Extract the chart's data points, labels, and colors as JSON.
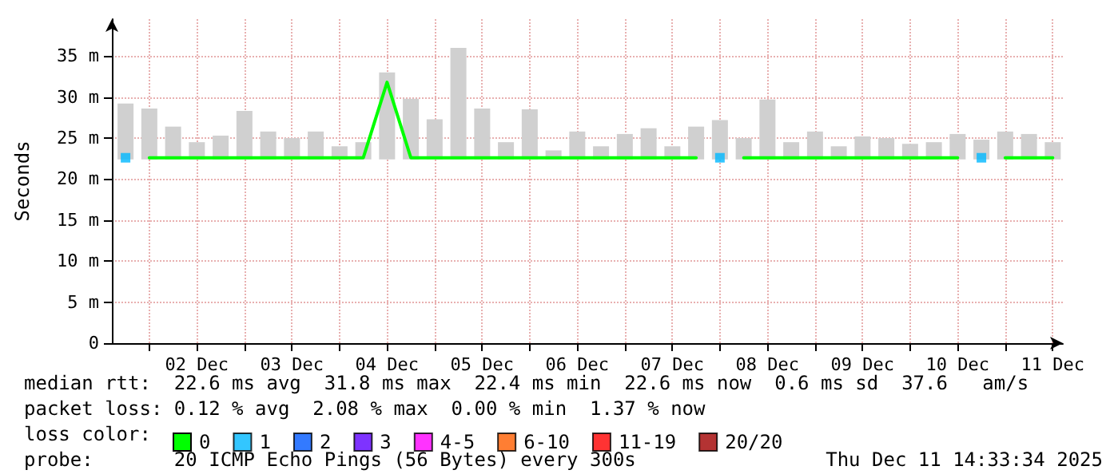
{
  "chart_data": {
    "type": "line",
    "ylabel": "Seconds",
    "legend_title": "loss color:",
    "legend": "bottom",
    "grid": true,
    "marker": "none",
    "x": [
      "2025-12-01T18:00",
      "2025-12-02T00:00",
      "2025-12-02T06:00",
      "2025-12-02T12:00",
      "2025-12-02T18:00",
      "2025-12-03T00:00",
      "2025-12-03T06:00",
      "2025-12-03T12:00",
      "2025-12-03T18:00",
      "2025-12-04T00:00",
      "2025-12-04T06:00",
      "2025-12-04T12:00",
      "2025-12-04T18:00",
      "2025-12-05T00:00",
      "2025-12-05T06:00",
      "2025-12-05T12:00",
      "2025-12-05T18:00",
      "2025-12-06T00:00",
      "2025-12-06T06:00",
      "2025-12-06T12:00",
      "2025-12-06T18:00",
      "2025-12-07T00:00",
      "2025-12-07T06:00",
      "2025-12-07T12:00",
      "2025-12-07T18:00",
      "2025-12-08T00:00",
      "2025-12-08T06:00",
      "2025-12-08T12:00",
      "2025-12-08T18:00",
      "2025-12-09T00:00",
      "2025-12-09T06:00",
      "2025-12-09T12:00",
      "2025-12-09T18:00",
      "2025-12-10T00:00",
      "2025-12-10T06:00",
      "2025-12-10T12:00",
      "2025-12-10T18:00",
      "2025-12-11T00:00",
      "2025-12-11T06:00",
      "2025-12-11T12:00"
    ],
    "xlim": [
      "2025-12-01T14:33",
      "2025-12-11T14:33"
    ],
    "xticks": [
      {
        "value": "2025-12-02T00:00",
        "label": null
      },
      {
        "value": "2025-12-02T12:00",
        "label": "02 Dec"
      },
      {
        "value": "2025-12-03T00:00",
        "label": null
      },
      {
        "value": "2025-12-03T12:00",
        "label": "03 Dec"
      },
      {
        "value": "2025-12-04T00:00",
        "label": null
      },
      {
        "value": "2025-12-04T12:00",
        "label": "04 Dec"
      },
      {
        "value": "2025-12-05T00:00",
        "label": null
      },
      {
        "value": "2025-12-05T12:00",
        "label": "05 Dec"
      },
      {
        "value": "2025-12-06T00:00",
        "label": null
      },
      {
        "value": "2025-12-06T12:00",
        "label": "06 Dec"
      },
      {
        "value": "2025-12-07T00:00",
        "label": null
      },
      {
        "value": "2025-12-07T12:00",
        "label": "07 Dec"
      },
      {
        "value": "2025-12-08T00:00",
        "label": null
      },
      {
        "value": "2025-12-08T12:00",
        "label": "08 Dec"
      },
      {
        "value": "2025-12-09T00:00",
        "label": null
      },
      {
        "value": "2025-12-09T12:00",
        "label": "09 Dec"
      },
      {
        "value": "2025-12-10T00:00",
        "label": null
      },
      {
        "value": "2025-12-10T12:00",
        "label": "10 Dec"
      },
      {
        "value": "2025-12-11T00:00",
        "label": null
      },
      {
        "value": "2025-12-11T12:00",
        "label": "11 Dec"
      }
    ],
    "ylim": [
      0,
      39.5
    ],
    "yticks": [
      0,
      {
        "value": 5,
        "label": "5 m"
      },
      {
        "value": 10,
        "label": "10 m"
      },
      {
        "value": 15,
        "label": "15 m"
      },
      {
        "value": 20,
        "label": "20 m"
      },
      {
        "value": 25,
        "label": "25 m"
      },
      {
        "value": 30,
        "label": "30 m"
      },
      {
        "value": 35,
        "label": "35 m"
      }
    ],
    "series": [
      {
        "type": "bar",
        "color": "#d0d0d0",
        "base": [
          22.4,
          22.4,
          22.4,
          22.4,
          22.4,
          22.4,
          22.4,
          22.4,
          22.4,
          22.4,
          22.4,
          22.4,
          22.4,
          22.4,
          22.4,
          22.4,
          22.4,
          22.4,
          22.4,
          22.4,
          22.4,
          22.4,
          22.4,
          22.4,
          22.4,
          22.4,
          22.4,
          22.4,
          22.4,
          22.4,
          22.4,
          22.4,
          22.4,
          22.4,
          22.4,
          22.4,
          22.4,
          22.4,
          22.4,
          22.4
        ],
        "values": [
          6.8,
          6.2,
          4,
          2.1,
          2.9,
          5.9,
          3.4,
          2.6,
          3.4,
          1.6,
          2.1,
          10.6,
          7.4,
          4.9,
          13.6,
          6.2,
          2.1,
          6.1,
          1.1,
          3.4,
          1.6,
          3.1,
          3.8,
          1.6,
          4,
          4.8,
          2.6,
          7.3,
          2.1,
          3.4,
          1.6,
          2.8,
          2.6,
          1.9,
          2.1,
          3.1,
          2.4,
          3.4,
          3.1,
          2.1
        ]
      },
      {
        "name": "0",
        "color": "#00ff00",
        "values": [
          null,
          22.6,
          22.6,
          22.6,
          22.6,
          22.6,
          22.6,
          22.6,
          22.6,
          22.6,
          22.6,
          31.8,
          22.6,
          22.6,
          22.6,
          22.6,
          22.6,
          22.6,
          22.6,
          22.6,
          22.6,
          22.6,
          22.6,
          22.6,
          22.6,
          null,
          22.6,
          22.6,
          22.6,
          22.6,
          22.6,
          22.6,
          22.6,
          22.6,
          22.6,
          22.6,
          null,
          22.6,
          22.6,
          22.6
        ]
      },
      {
        "name": "1",
        "type": "scatter",
        "marker": "square",
        "color": "#00b8ff",
        "values": [
          22.6,
          null,
          null,
          null,
          null,
          null,
          null,
          null,
          null,
          null,
          null,
          null,
          null,
          null,
          null,
          null,
          null,
          null,
          null,
          null,
          null,
          null,
          null,
          null,
          null,
          22.6,
          null,
          null,
          null,
          null,
          null,
          null,
          null,
          null,
          null,
          null,
          22.6,
          null,
          null,
          null
        ]
      },
      {
        "name": "2",
        "type": "scatter",
        "marker": "square",
        "color": "#0059ff",
        "values": [
          null,
          null,
          null,
          null,
          null,
          null,
          null,
          null,
          null,
          null,
          null,
          null,
          null,
          null,
          null,
          null,
          null,
          null,
          null,
          null,
          null,
          null,
          null,
          null,
          null,
          null,
          null,
          null,
          null,
          null,
          null,
          null,
          null,
          null,
          null,
          null,
          null,
          null,
          null,
          null
        ]
      },
      {
        "name": "3",
        "type": "scatter",
        "marker": "square",
        "color": "#5e00ff",
        "values": [
          null,
          null,
          null,
          null,
          null,
          null,
          null,
          null,
          null,
          null,
          null,
          null,
          null,
          null,
          null,
          null,
          null,
          null,
          null,
          null,
          null,
          null,
          null,
          null,
          null,
          null,
          null,
          null,
          null,
          null,
          null,
          null,
          null,
          null,
          null,
          null,
          null,
          null,
          null,
          null
        ]
      },
      {
        "name": "4-5",
        "type": "scatter",
        "marker": "square",
        "color": "#ff00ff",
        "values": [
          null,
          null,
          null,
          null,
          null,
          null,
          null,
          null,
          null,
          null,
          null,
          null,
          null,
          null,
          null,
          null,
          null,
          null,
          null,
          null,
          null,
          null,
          null,
          null,
          null,
          null,
          null,
          null,
          null,
          null,
          null,
          null,
          null,
          null,
          null,
          null,
          null,
          null,
          null,
          null
        ]
      },
      {
        "name": "6-10",
        "type": "scatter",
        "marker": "square",
        "color": "#ff5e00",
        "values": [
          null,
          null,
          null,
          null,
          null,
          null,
          null,
          null,
          null,
          null,
          null,
          null,
          null,
          null,
          null,
          null,
          null,
          null,
          null,
          null,
          null,
          null,
          null,
          null,
          null,
          null,
          null,
          null,
          null,
          null,
          null,
          null,
          null,
          null,
          null,
          null,
          null,
          null,
          null,
          null
        ]
      },
      {
        "name": "11-19",
        "type": "scatter",
        "marker": "square",
        "color": "#ff0000",
        "values": [
          null,
          null,
          null,
          null,
          null,
          null,
          null,
          null,
          null,
          null,
          null,
          null,
          null,
          null,
          null,
          null,
          null,
          null,
          null,
          null,
          null,
          null,
          null,
          null,
          null,
          null,
          null,
          null,
          null,
          null,
          null,
          null,
          null,
          null,
          null,
          null,
          null,
          null,
          null,
          null
        ]
      },
      {
        "name": "20/20",
        "type": "scatter",
        "marker": "square",
        "color": "#a10000",
        "values": [
          null,
          null,
          null,
          null,
          null,
          null,
          null,
          null,
          null,
          null,
          null,
          null,
          null,
          null,
          null,
          null,
          null,
          null,
          null,
          null,
          null,
          null,
          null,
          null,
          null,
          null,
          null,
          null,
          null,
          null,
          null,
          null,
          null,
          null,
          null,
          null,
          null,
          null,
          null,
          null
        ]
      }
    ],
    "annotations": [
      "median rtt:  22.6 ms avg  31.8 ms max  22.4 ms min  22.6 ms now  0.6 ms sd  37.6   am/s",
      "packet loss: 0.12 % avg  2.08 % max  0.00 % min  1.37 % now",
      "probe:       20 ICMP Echo Pings (56 Bytes) every 300s",
      "Thu Dec 11 14:33:34 2025"
    ]
  }
}
